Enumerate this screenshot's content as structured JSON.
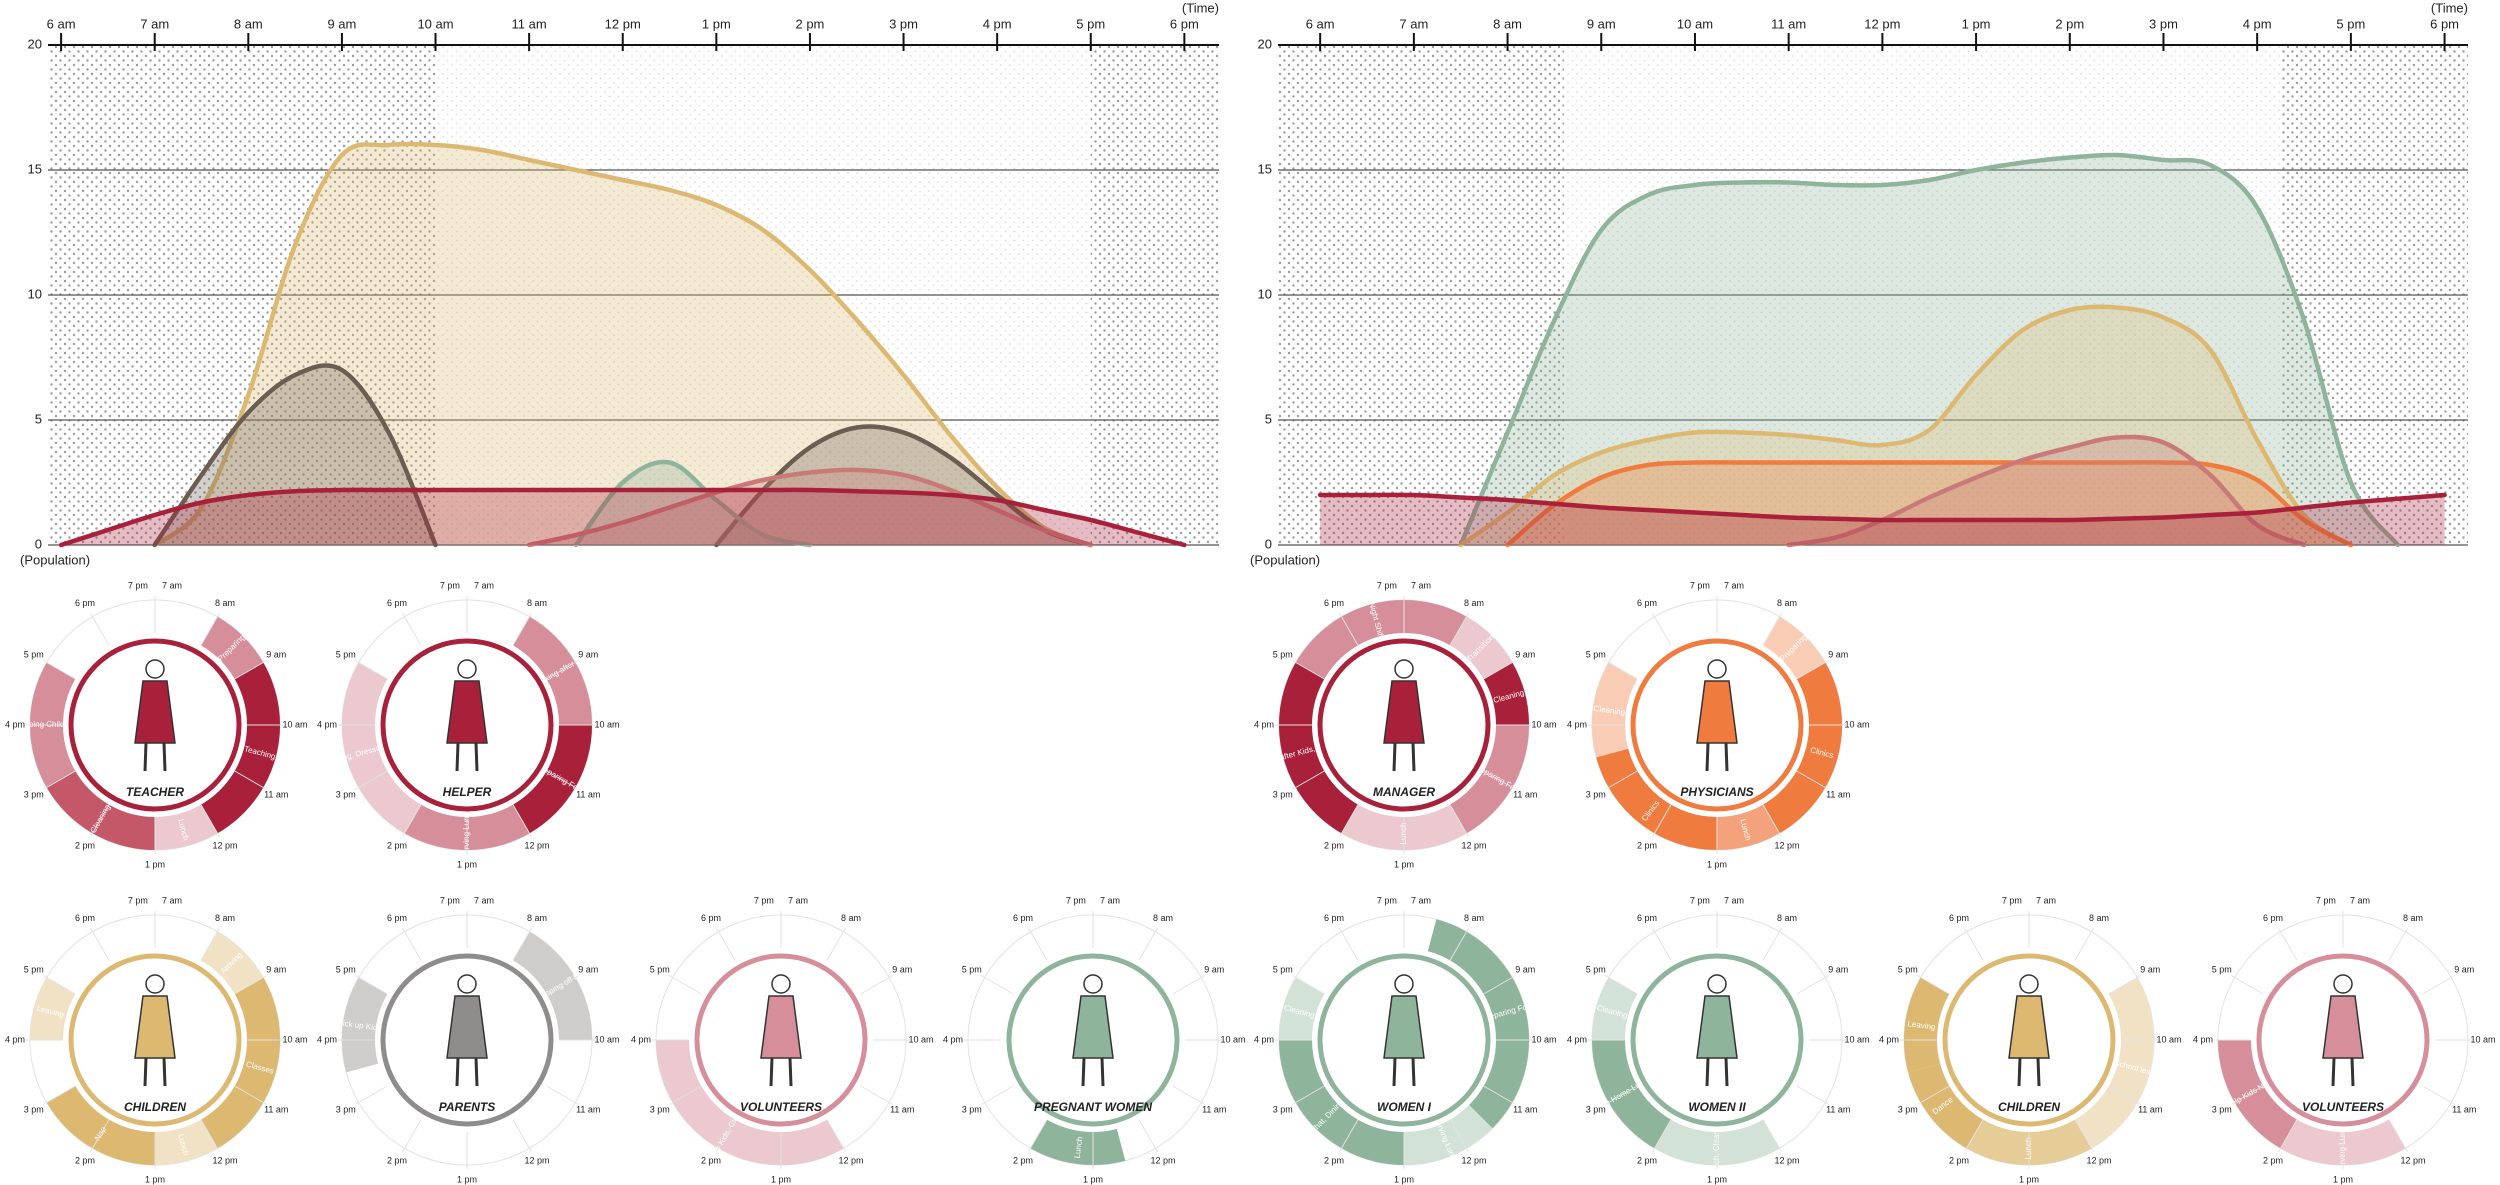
{
  "chart_data": [
    {
      "type": "area",
      "x_label": "(Time)",
      "y_label": "(Population)",
      "x": [
        6,
        6.5,
        7,
        7.5,
        8,
        8.5,
        9,
        9.5,
        10,
        10.5,
        11,
        11.5,
        12,
        12.5,
        13,
        13.5,
        14,
        14.5,
        15,
        15.5,
        16,
        16.5,
        17,
        17.5,
        18
      ],
      "xlim": [
        5.86,
        18.37
      ],
      "xticks": [
        {
          "value": 6,
          "label": "6 am"
        },
        {
          "value": 7,
          "label": "7 am"
        },
        {
          "value": 8,
          "label": "8 am"
        },
        {
          "value": 9,
          "label": "9 am"
        },
        {
          "value": 10,
          "label": "10 am"
        },
        {
          "value": 11,
          "label": "11 am"
        },
        {
          "value": 12,
          "label": "12 pm"
        },
        {
          "value": 13,
          "label": "1 pm"
        },
        {
          "value": 14,
          "label": "2 pm"
        },
        {
          "value": 15,
          "label": "3 pm"
        },
        {
          "value": 16,
          "label": "4 pm"
        },
        {
          "value": 17,
          "label": "5 pm"
        },
        {
          "value": 18,
          "label": "6 pm"
        }
      ],
      "ylim": [
        0,
        20
      ],
      "yticks": [
        0,
        5,
        10,
        15,
        20
      ],
      "grid": true,
      "shaded_ranges": [
        [
          5.86,
          10
        ],
        [
          17,
          18.37
        ]
      ],
      "series": [
        {
          "color": "#dcb871",
          "values": [
            null,
            null,
            0,
            1.5,
            6,
            12,
            15.6,
            16,
            16,
            15.8,
            15.4,
            15,
            14.6,
            14.2,
            13.6,
            12.6,
            11,
            9,
            6.8,
            4.4,
            2.3,
            0.7,
            0,
            null,
            null
          ]
        },
        {
          "color": "#6b5d52",
          "values": [
            null,
            null,
            0,
            2.8,
            5.3,
            6.8,
            7,
            4.5,
            0,
            null,
            null,
            null,
            null,
            null,
            0,
            2.2,
            3.9,
            4.7,
            4.5,
            3.5,
            2,
            0.6,
            0,
            null,
            null
          ]
        },
        {
          "color": "#8fb49c",
          "values": [
            null,
            null,
            null,
            null,
            null,
            null,
            null,
            null,
            null,
            null,
            null,
            0,
            2.5,
            3.3,
            1.8,
            0.4,
            0,
            null,
            null,
            null,
            null,
            null,
            null,
            null,
            null
          ]
        },
        {
          "color": "#c97a78",
          "values": [
            null,
            null,
            null,
            null,
            null,
            null,
            null,
            null,
            null,
            null,
            0,
            0.4,
            0.9,
            1.5,
            2.1,
            2.6,
            2.9,
            3,
            2.8,
            2.2,
            1.4,
            0.6,
            0,
            null,
            null
          ]
        },
        {
          "color": "#a8203a",
          "values": [
            0,
            0.6,
            1.2,
            1.7,
            2,
            2.15,
            2.2,
            2.2,
            2.2,
            2.2,
            2.2,
            2.2,
            2.2,
            2.2,
            2.2,
            2.2,
            2.2,
            2.15,
            2.1,
            2,
            1.8,
            1.4,
            1,
            0.5,
            0
          ]
        }
      ]
    },
    {
      "type": "area",
      "x_label": "(Time)",
      "y_label": "(Population)",
      "x": [
        6,
        6.5,
        7,
        7.5,
        8,
        8.5,
        9,
        9.5,
        10,
        10.5,
        11,
        11.5,
        12,
        12.5,
        13,
        13.5,
        14,
        14.5,
        15,
        15.5,
        16,
        16.5,
        17,
        17.5,
        18
      ],
      "xlim": [
        5.55,
        18.25
      ],
      "xticks": [
        {
          "value": 6,
          "label": "6 am"
        },
        {
          "value": 7,
          "label": "7 am"
        },
        {
          "value": 8,
          "label": "8 am"
        },
        {
          "value": 9,
          "label": "9 am"
        },
        {
          "value": 10,
          "label": "10 am"
        },
        {
          "value": 11,
          "label": "11 am"
        },
        {
          "value": 12,
          "label": "12 pm"
        },
        {
          "value": 13,
          "label": "1 pm"
        },
        {
          "value": 14,
          "label": "2 pm"
        },
        {
          "value": 15,
          "label": "3 pm"
        },
        {
          "value": 16,
          "label": "4 pm"
        },
        {
          "value": 17,
          "label": "5 pm"
        },
        {
          "value": 18,
          "label": "6 pm"
        }
      ],
      "ylim": [
        0,
        20
      ],
      "yticks": [
        0,
        5,
        10,
        15,
        20
      ],
      "grid": true,
      "shaded_ranges": [
        [
          5.55,
          8.6
        ],
        [
          16.25,
          18.25
        ]
      ],
      "series": [
        {
          "color": "#8fb49c",
          "values": [
            null,
            null,
            null,
            0,
            4.5,
            9,
            12.6,
            14,
            14.4,
            14.5,
            14.5,
            14.4,
            14.4,
            14.6,
            15,
            15.3,
            15.5,
            15.6,
            15.4,
            15.2,
            13.5,
            9,
            2.5,
            0,
            null
          ]
        },
        {
          "color": "#dcb871",
          "values": [
            null,
            null,
            null,
            0,
            1.3,
            2.8,
            3.7,
            4.2,
            4.5,
            4.5,
            4.4,
            4.2,
            4,
            4.6,
            6.8,
            8.6,
            9.4,
            9.5,
            9.1,
            7.8,
            4.2,
            1.2,
            0,
            null,
            null
          ]
        },
        {
          "color": "#ef7b3f",
          "values": [
            null,
            null,
            null,
            null,
            0,
            1.6,
            2.7,
            3.2,
            3.3,
            3.3,
            3.3,
            3.3,
            3.3,
            3.3,
            3.3,
            3.3,
            3.3,
            3.3,
            3.3,
            3.2,
            2.6,
            1,
            0,
            null,
            null
          ]
        },
        {
          "color": "#c97a78",
          "values": [
            null,
            null,
            null,
            null,
            null,
            null,
            null,
            null,
            null,
            null,
            0,
            0.3,
            1,
            1.9,
            2.7,
            3.4,
            3.9,
            4.3,
            4.1,
            2.8,
            0.8,
            0,
            null,
            null,
            null
          ]
        },
        {
          "color": "#a8203a",
          "values": [
            2,
            2,
            2,
            1.9,
            1.8,
            1.65,
            1.5,
            1.4,
            1.3,
            1.2,
            1.1,
            1.05,
            1,
            1,
            1,
            1,
            1,
            1.05,
            1.1,
            1.2,
            1.3,
            1.5,
            1.7,
            1.85,
            2
          ]
        }
      ]
    }
  ],
  "wheel_hours": [
    {
      "value": 7,
      "label": "7 am"
    },
    {
      "value": 8,
      "label": "8 am"
    },
    {
      "value": 9,
      "label": "9 am"
    },
    {
      "value": 10,
      "label": "10 am"
    },
    {
      "value": 11,
      "label": "11 am"
    },
    {
      "value": 12,
      "label": "12 pm"
    },
    {
      "value": 13,
      "label": "1 pm"
    },
    {
      "value": 14,
      "label": "2 pm"
    },
    {
      "value": 15,
      "label": "3 pm"
    },
    {
      "value": 16,
      "label": "4 pm"
    },
    {
      "value": 17,
      "label": "5 pm"
    },
    {
      "value": 18,
      "label": "6 pm"
    },
    {
      "value": 19,
      "label": "7 pm"
    }
  ],
  "wheels": [
    {
      "label": "TEACHER",
      "color": "#a8203a",
      "segments": [
        {
          "label": "Preparing",
          "start": 8,
          "end": 9,
          "color": "#d58e9a"
        },
        {
          "label": "Teaching",
          "start": 9,
          "end": 12,
          "color": "#a8203a"
        },
        {
          "label": "Lunch",
          "start": 12,
          "end": 13,
          "color": "#ecc8cf"
        },
        {
          "label": "Cleaning",
          "start": 13,
          "end": 15,
          "color": "#c45868"
        },
        {
          "label": "Helping Children",
          "start": 15,
          "end": 17,
          "color": "#d58e9a"
        }
      ]
    },
    {
      "label": "HELPER",
      "color": "#a8203a",
      "segments": [
        {
          "label": "Looking after kids",
          "start": 8,
          "end": 10,
          "color": "#d58e9a"
        },
        {
          "label": "Preparing Food",
          "start": 10,
          "end": 12,
          "color": "#a8203a"
        },
        {
          "label": "Serving Lunch",
          "start": 12,
          "end": 14,
          "color": "#d58e9a"
        },
        {
          "label": "Cleaning, Dressing Kids",
          "start": 14,
          "end": 17,
          "color": "#ecc8cf"
        }
      ]
    },
    {
      "label": "MANAGER",
      "color": "#a8203a",
      "segments": [
        {
          "label": "Night Shift",
          "start": 17,
          "end": 8,
          "color": "#d58e9a"
        },
        {
          "label": "Transition",
          "start": 8,
          "end": 9,
          "color": "#ecc8cf"
        },
        {
          "label": "Cleaning",
          "start": 9,
          "end": 10,
          "color": "#a8203a"
        },
        {
          "label": "Preparing Food",
          "start": 10,
          "end": 12,
          "color": "#d58e9a"
        },
        {
          "label": "Lunch",
          "start": 12,
          "end": 14,
          "color": "#ecc8cf"
        },
        {
          "label": "Looking after Kids, Cleaning",
          "start": 14,
          "end": 17,
          "color": "#a8203a"
        }
      ]
    },
    {
      "label": "PHYSICIANS",
      "color": "#ef7b3f",
      "segments": [
        {
          "label": "Preparing",
          "start": 8,
          "end": 9,
          "color": "#f9cdb5"
        },
        {
          "label": "Clinics",
          "start": 9,
          "end": 12,
          "color": "#ef7b3f"
        },
        {
          "label": "Lunch",
          "start": 12,
          "end": 13,
          "color": "#f4a27b"
        },
        {
          "label": "Clinics",
          "start": 13,
          "end": 15.5,
          "color": "#ef7b3f"
        },
        {
          "label": "Cleaning",
          "start": 15.5,
          "end": 17,
          "color": "#f9cdb5"
        }
      ]
    },
    {
      "label": "CHILDREN",
      "color": "#dcb871",
      "segments": [
        {
          "label": "Arriving",
          "start": 8,
          "end": 9,
          "color": "#f1e2c6"
        },
        {
          "label": "Classes",
          "start": 9,
          "end": 12,
          "color": "#dcb871"
        },
        {
          "label": "Lunch",
          "start": 12,
          "end": 13,
          "color": "#f1e2c6"
        },
        {
          "label": "Nap",
          "start": 13,
          "end": 15,
          "color": "#dcb871"
        },
        {
          "label": "Leaving",
          "start": 16,
          "end": 17,
          "color": "#f1e2c6"
        }
      ]
    },
    {
      "label": "PARENTS",
      "color": "#8f8c8c",
      "segments": [
        {
          "label": "Dropping off Kids",
          "start": 8,
          "end": 10,
          "color": "#cfcccc"
        },
        {
          "label": "Pick up Kids",
          "start": 15.5,
          "end": 17,
          "color": "#cfcccc"
        }
      ]
    },
    {
      "label": "VOLUNTEERS",
      "color": "#d58e9a",
      "segments": [
        {
          "label": "Looking after Kids, Cleaning, Chat",
          "start": 12,
          "end": 16,
          "color": "#ecc8cf"
        }
      ]
    },
    {
      "label": "PREGNANT WOMEN",
      "color": "#8fb49c",
      "segments": [
        {
          "label": "Lunch",
          "start": 12.5,
          "end": 14,
          "color": "#8fb49c"
        }
      ]
    },
    {
      "label": "WOMEN I",
      "color": "#8fb49c",
      "segments": [
        {
          "label": "Preparing Food",
          "start": 7.5,
          "end": 11.5,
          "color": "#8fb49c"
        },
        {
          "label": "Serving Lunch",
          "start": 11.5,
          "end": 13,
          "color": "#d2e2d6"
        },
        {
          "label": "Chat, Dining",
          "start": 13,
          "end": 16,
          "color": "#8fb49c"
        },
        {
          "label": "Cleaning",
          "start": 16,
          "end": 17,
          "color": "#d2e2d6"
        }
      ]
    },
    {
      "label": "WOMEN II",
      "color": "#8fb49c",
      "segments": [
        {
          "label": "Lunch, Cleaning",
          "start": 12,
          "end": 14,
          "color": "#d2e2d6"
        },
        {
          "label": "Take Home Lunch",
          "start": 14,
          "end": 16,
          "color": "#8fb49c"
        },
        {
          "label": "Cleaning",
          "start": 16,
          "end": 17,
          "color": "#d2e2d6"
        }
      ]
    },
    {
      "label": "CHILDREN",
      "color": "#dcb871",
      "segments": [
        {
          "label": "Pre-school lessons",
          "start": 9,
          "end": 12,
          "color": "#f1e2c6"
        },
        {
          "label": "Lunch",
          "start": 12,
          "end": 14,
          "color": "#e6cc97"
        },
        {
          "label": "Dance",
          "start": 14,
          "end": 15.5,
          "color": "#dcb871"
        },
        {
          "label": "Leaving",
          "start": 15.5,
          "end": 17,
          "color": "#dcb871"
        }
      ]
    },
    {
      "label": "VOLUNTEERS",
      "color": "#d58e9a",
      "segments": [
        {
          "label": "Serving Lunch",
          "start": 12,
          "end": 14,
          "color": "#ecc8cf"
        },
        {
          "label": "Help Kids Nap",
          "start": 14,
          "end": 16,
          "color": "#d58e9a"
        }
      ]
    }
  ]
}
